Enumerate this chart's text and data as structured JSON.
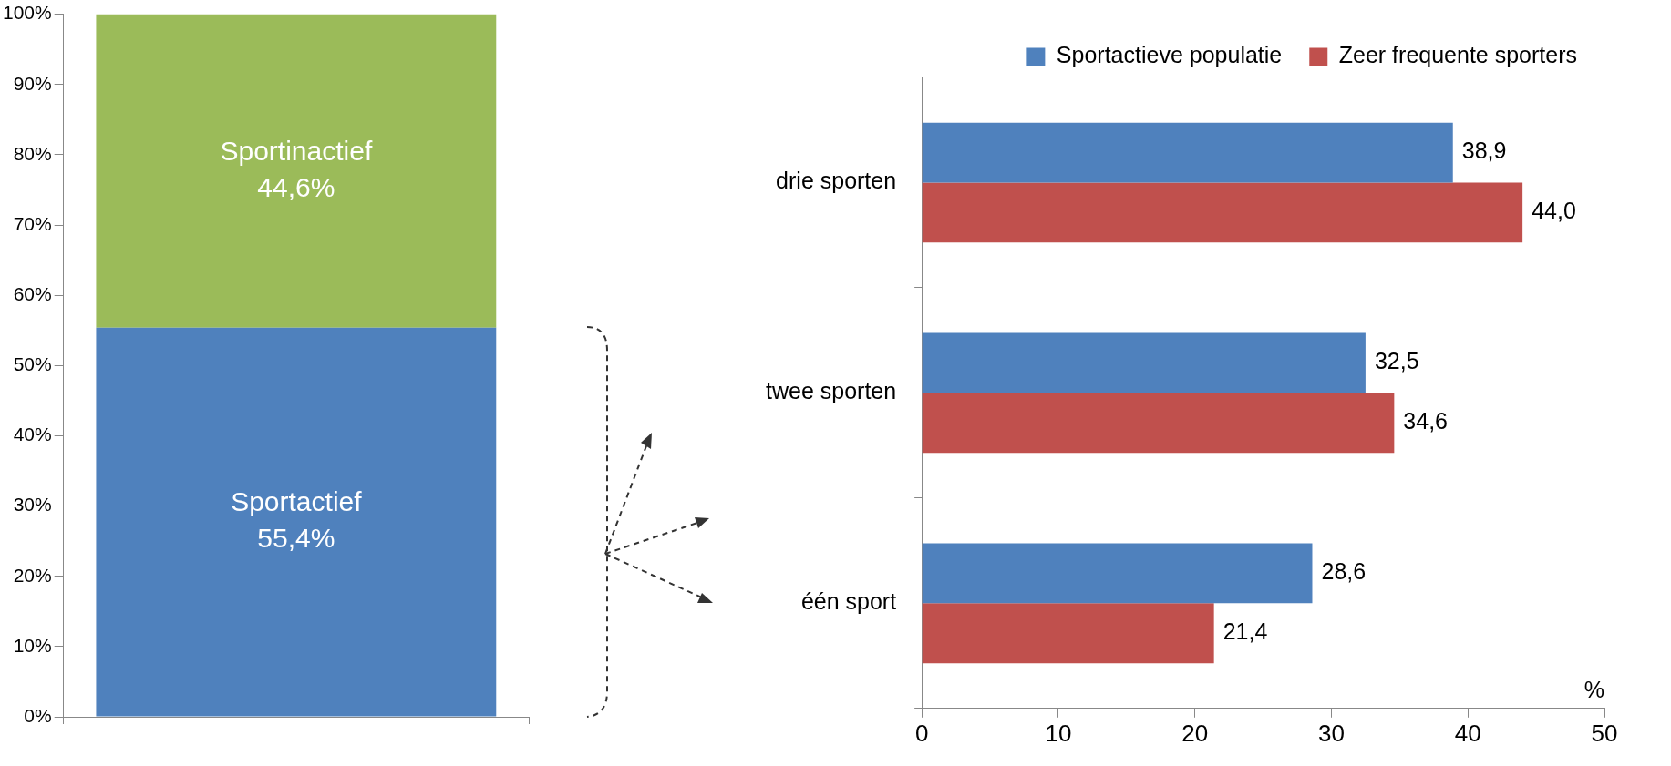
{
  "chart_data": [
    {
      "type": "bar",
      "stacked": true,
      "categories": [
        null
      ],
      "tick_labels": "y",
      "legend": false,
      "ylim": [
        0,
        100
      ],
      "yticks": [
        {
          "value": 0,
          "label": "0%"
        },
        {
          "value": 10,
          "label": "10%"
        },
        {
          "value": 20,
          "label": "20%"
        },
        {
          "value": 30,
          "label": "30%"
        },
        {
          "value": 40,
          "label": "40%"
        },
        {
          "value": 50,
          "label": "50%"
        },
        {
          "value": 60,
          "label": "60%"
        },
        {
          "value": 70,
          "label": "70%"
        },
        {
          "value": 80,
          "label": "80%"
        },
        {
          "value": 90,
          "label": "90%"
        },
        {
          "value": 100,
          "label": "100%"
        }
      ],
      "series": [
        {
          "name": "Sportactief",
          "color": "#4f81bd",
          "values": [
            55.4
          ],
          "value_labels": [
            "55,4%"
          ]
        },
        {
          "name": "Sportinactief",
          "color": "#9bbb59",
          "values": [
            44.6
          ],
          "value_labels": [
            "44,6%"
          ]
        }
      ]
    },
    {
      "type": "bar",
      "orientation": "horizontal",
      "categories": [
        "drie sporten",
        "twee sporten",
        "één sport"
      ],
      "xlabel": "%",
      "legend": "top",
      "xlim": [
        0,
        50
      ],
      "xticks": [
        0,
        10,
        20,
        30,
        40,
        50
      ],
      "series": [
        {
          "name": "Sportactieve populatie",
          "color": "#4f81bd",
          "values": [
            38.9,
            32.5,
            28.6
          ],
          "value_labels": [
            "38,9",
            "32,5",
            "28,6"
          ]
        },
        {
          "name": "Zeer frequente sporters",
          "color": "#c0504d",
          "values": [
            44.0,
            34.6,
            21.4
          ],
          "value_labels": [
            "44,0",
            "34,6",
            "21,4"
          ]
        }
      ]
    }
  ]
}
